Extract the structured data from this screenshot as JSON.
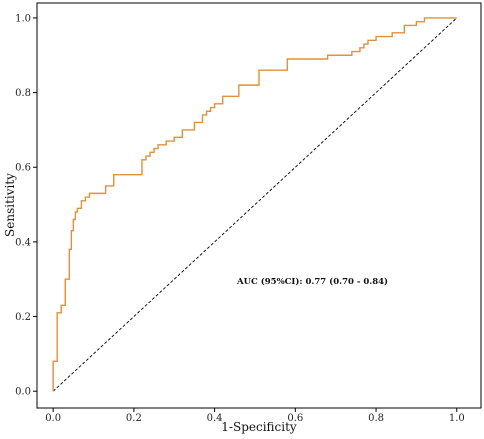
{
  "chart_data": {
    "type": "line",
    "xlabel": "1-Specificity",
    "ylabel": "Sensitivity",
    "xlim": [
      -0.04,
      1.06
    ],
    "ylim": [
      -0.045,
      1.04
    ],
    "x_ticks": [
      "0.0",
      "0.2",
      "0.4",
      "0.6",
      "0.8",
      "1.0"
    ],
    "y_ticks": [
      "0.0",
      "0.2",
      "0.4",
      "0.6",
      "0.8",
      "1.0"
    ],
    "grid": false,
    "annotation": "AUC (95%CI): 0.77 (0.70 - 0.84)",
    "series": [
      {
        "color": "#e0913a",
        "style": "step",
        "x": [
          0.0,
          0.0,
          0.01,
          0.01,
          0.02,
          0.02,
          0.03,
          0.03,
          0.04,
          0.04,
          0.045,
          0.045,
          0.05,
          0.05,
          0.055,
          0.055,
          0.06,
          0.06,
          0.07,
          0.07,
          0.08,
          0.08,
          0.09,
          0.09,
          0.13,
          0.13,
          0.15,
          0.15,
          0.22,
          0.22,
          0.23,
          0.23,
          0.24,
          0.24,
          0.25,
          0.25,
          0.26,
          0.26,
          0.28,
          0.28,
          0.3,
          0.3,
          0.32,
          0.32,
          0.35,
          0.35,
          0.37,
          0.37,
          0.38,
          0.38,
          0.39,
          0.39,
          0.4,
          0.4,
          0.42,
          0.42,
          0.46,
          0.46,
          0.51,
          0.51,
          0.58,
          0.58,
          0.68,
          0.68,
          0.74,
          0.74,
          0.76,
          0.76,
          0.77,
          0.77,
          0.78,
          0.78,
          0.8,
          0.8,
          0.84,
          0.84,
          0.87,
          0.87,
          0.9,
          0.9,
          0.92,
          0.92,
          1.0
        ],
        "y": [
          0.0,
          0.08,
          0.08,
          0.21,
          0.21,
          0.23,
          0.23,
          0.3,
          0.3,
          0.38,
          0.38,
          0.43,
          0.43,
          0.46,
          0.46,
          0.48,
          0.48,
          0.49,
          0.49,
          0.51,
          0.51,
          0.52,
          0.52,
          0.53,
          0.53,
          0.55,
          0.55,
          0.58,
          0.58,
          0.62,
          0.62,
          0.63,
          0.63,
          0.64,
          0.64,
          0.65,
          0.65,
          0.66,
          0.66,
          0.67,
          0.67,
          0.68,
          0.68,
          0.7,
          0.7,
          0.72,
          0.72,
          0.74,
          0.74,
          0.75,
          0.75,
          0.76,
          0.76,
          0.77,
          0.77,
          0.79,
          0.79,
          0.82,
          0.82,
          0.86,
          0.86,
          0.89,
          0.89,
          0.9,
          0.9,
          0.91,
          0.91,
          0.92,
          0.92,
          0.93,
          0.93,
          0.94,
          0.94,
          0.95,
          0.95,
          0.96,
          0.96,
          0.98,
          0.98,
          0.99,
          0.99,
          1.0,
          1.0
        ]
      },
      {
        "color": "#000000",
        "style": "dashed",
        "x": [
          0.0,
          1.0
        ],
        "y": [
          0.0,
          1.0
        ]
      }
    ]
  }
}
